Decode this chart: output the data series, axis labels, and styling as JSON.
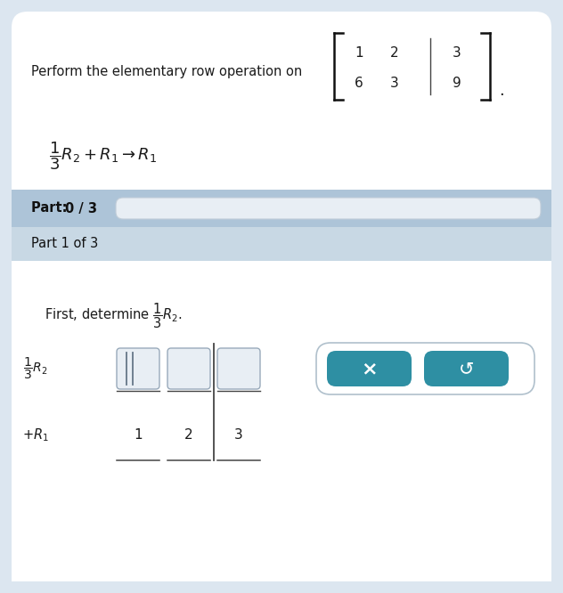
{
  "bg_color": "#dce6f0",
  "white": "#ffffff",
  "panel_header_color": "#adc4d8",
  "panel_subheader_color": "#c8d8e4",
  "teal_button": "#2e8fa3",
  "text_color": "#1a1a1a",
  "gray_text": "#2a2a2a",
  "title_text": "Perform the elementary row operation on",
  "matrix_r1": [
    "1",
    "2",
    "3"
  ],
  "matrix_r2": [
    "6",
    "3",
    "9"
  ],
  "part_label_bold": "Part: 0 / 3",
  "part1_label": "Part 1 of 3",
  "r1_values": [
    "1",
    "2",
    "3"
  ],
  "input_box_color": "#e8eef4",
  "progress_bar_color": "#dce8f0",
  "figw": 6.32,
  "figh": 6.66,
  "dpi": 100
}
